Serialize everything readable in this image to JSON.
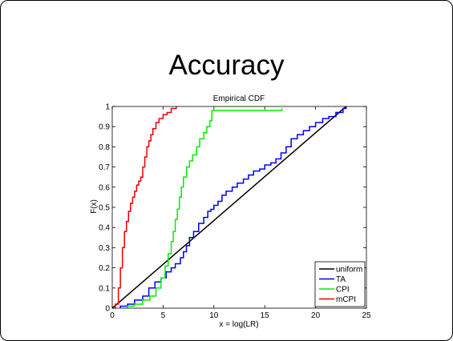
{
  "slide": {
    "title": "Accuracy"
  },
  "chart_data": {
    "type": "line",
    "chart_style": "step",
    "title": "Empirical CDF",
    "xlabel": "x = log(LR)",
    "ylabel": "F(x)",
    "xlim": [
      0,
      25
    ],
    "ylim": [
      0,
      1
    ],
    "xticks": [
      "0",
      "5",
      "10",
      "15",
      "20",
      "25"
    ],
    "yticks": [
      "0",
      "0.1",
      "0.2",
      "0.3",
      "0.4",
      "0.5",
      "0.6",
      "0.7",
      "0.8",
      "0.9",
      "1"
    ],
    "grid": false,
    "legend_position": "bottom-right",
    "series": [
      {
        "name": "uniform",
        "color": "#000000",
        "step": false,
        "x": [
          0,
          23
        ],
        "y": [
          0,
          1
        ]
      },
      {
        "name": "TA",
        "color": "#0000ff",
        "step": true,
        "x": [
          0.8,
          1.5,
          2.2,
          3.0,
          3.6,
          4.2,
          4.8,
          5.3,
          5.8,
          6.2,
          6.7,
          7.0,
          7.3,
          7.6,
          8.0,
          8.5,
          9.0,
          9.4,
          9.7,
          10.0,
          10.4,
          10.8,
          11.2,
          11.8,
          12.3,
          12.9,
          13.4,
          13.9,
          14.5,
          15.0,
          15.6,
          16.1,
          16.6,
          17.1,
          17.6,
          18.2,
          18.8,
          19.4,
          20.0,
          20.7,
          21.3,
          22.0,
          22.7,
          23.0
        ],
        "y": [
          0.01,
          0.02,
          0.04,
          0.06,
          0.1,
          0.13,
          0.15,
          0.18,
          0.2,
          0.22,
          0.25,
          0.28,
          0.31,
          0.35,
          0.38,
          0.42,
          0.45,
          0.48,
          0.49,
          0.51,
          0.53,
          0.56,
          0.58,
          0.6,
          0.62,
          0.64,
          0.66,
          0.68,
          0.69,
          0.71,
          0.72,
          0.74,
          0.77,
          0.8,
          0.84,
          0.86,
          0.88,
          0.9,
          0.92,
          0.94,
          0.95,
          0.97,
          0.99,
          1.0
        ]
      },
      {
        "name": "CPI",
        "color": "#00ee00",
        "step": true,
        "x": [
          1.5,
          2.2,
          3.0,
          3.7,
          4.3,
          4.8,
          5.2,
          5.5,
          5.8,
          6.0,
          6.2,
          6.4,
          6.6,
          6.8,
          7.0,
          7.3,
          7.6,
          7.9,
          8.3,
          8.6,
          9.0,
          9.3,
          9.6,
          9.8,
          16.7
        ],
        "y": [
          0.01,
          0.02,
          0.04,
          0.06,
          0.1,
          0.15,
          0.21,
          0.27,
          0.33,
          0.38,
          0.44,
          0.49,
          0.55,
          0.6,
          0.65,
          0.7,
          0.73,
          0.76,
          0.8,
          0.84,
          0.87,
          0.9,
          0.93,
          0.98,
          0.99
        ]
      },
      {
        "name": "mCPI",
        "color": "#ee0000",
        "step": true,
        "x": [
          0.3,
          0.6,
          0.8,
          1.0,
          1.2,
          1.4,
          1.6,
          1.8,
          2.0,
          2.2,
          2.4,
          2.6,
          2.8,
          3.0,
          3.2,
          3.4,
          3.6,
          3.8,
          4.0,
          4.3,
          4.6,
          5.0,
          5.4,
          5.8,
          6.3
        ],
        "y": [
          0.02,
          0.1,
          0.2,
          0.3,
          0.38,
          0.43,
          0.48,
          0.52,
          0.55,
          0.58,
          0.61,
          0.63,
          0.65,
          0.7,
          0.75,
          0.8,
          0.83,
          0.86,
          0.89,
          0.92,
          0.94,
          0.96,
          0.97,
          0.99,
          1.0
        ]
      }
    ]
  }
}
